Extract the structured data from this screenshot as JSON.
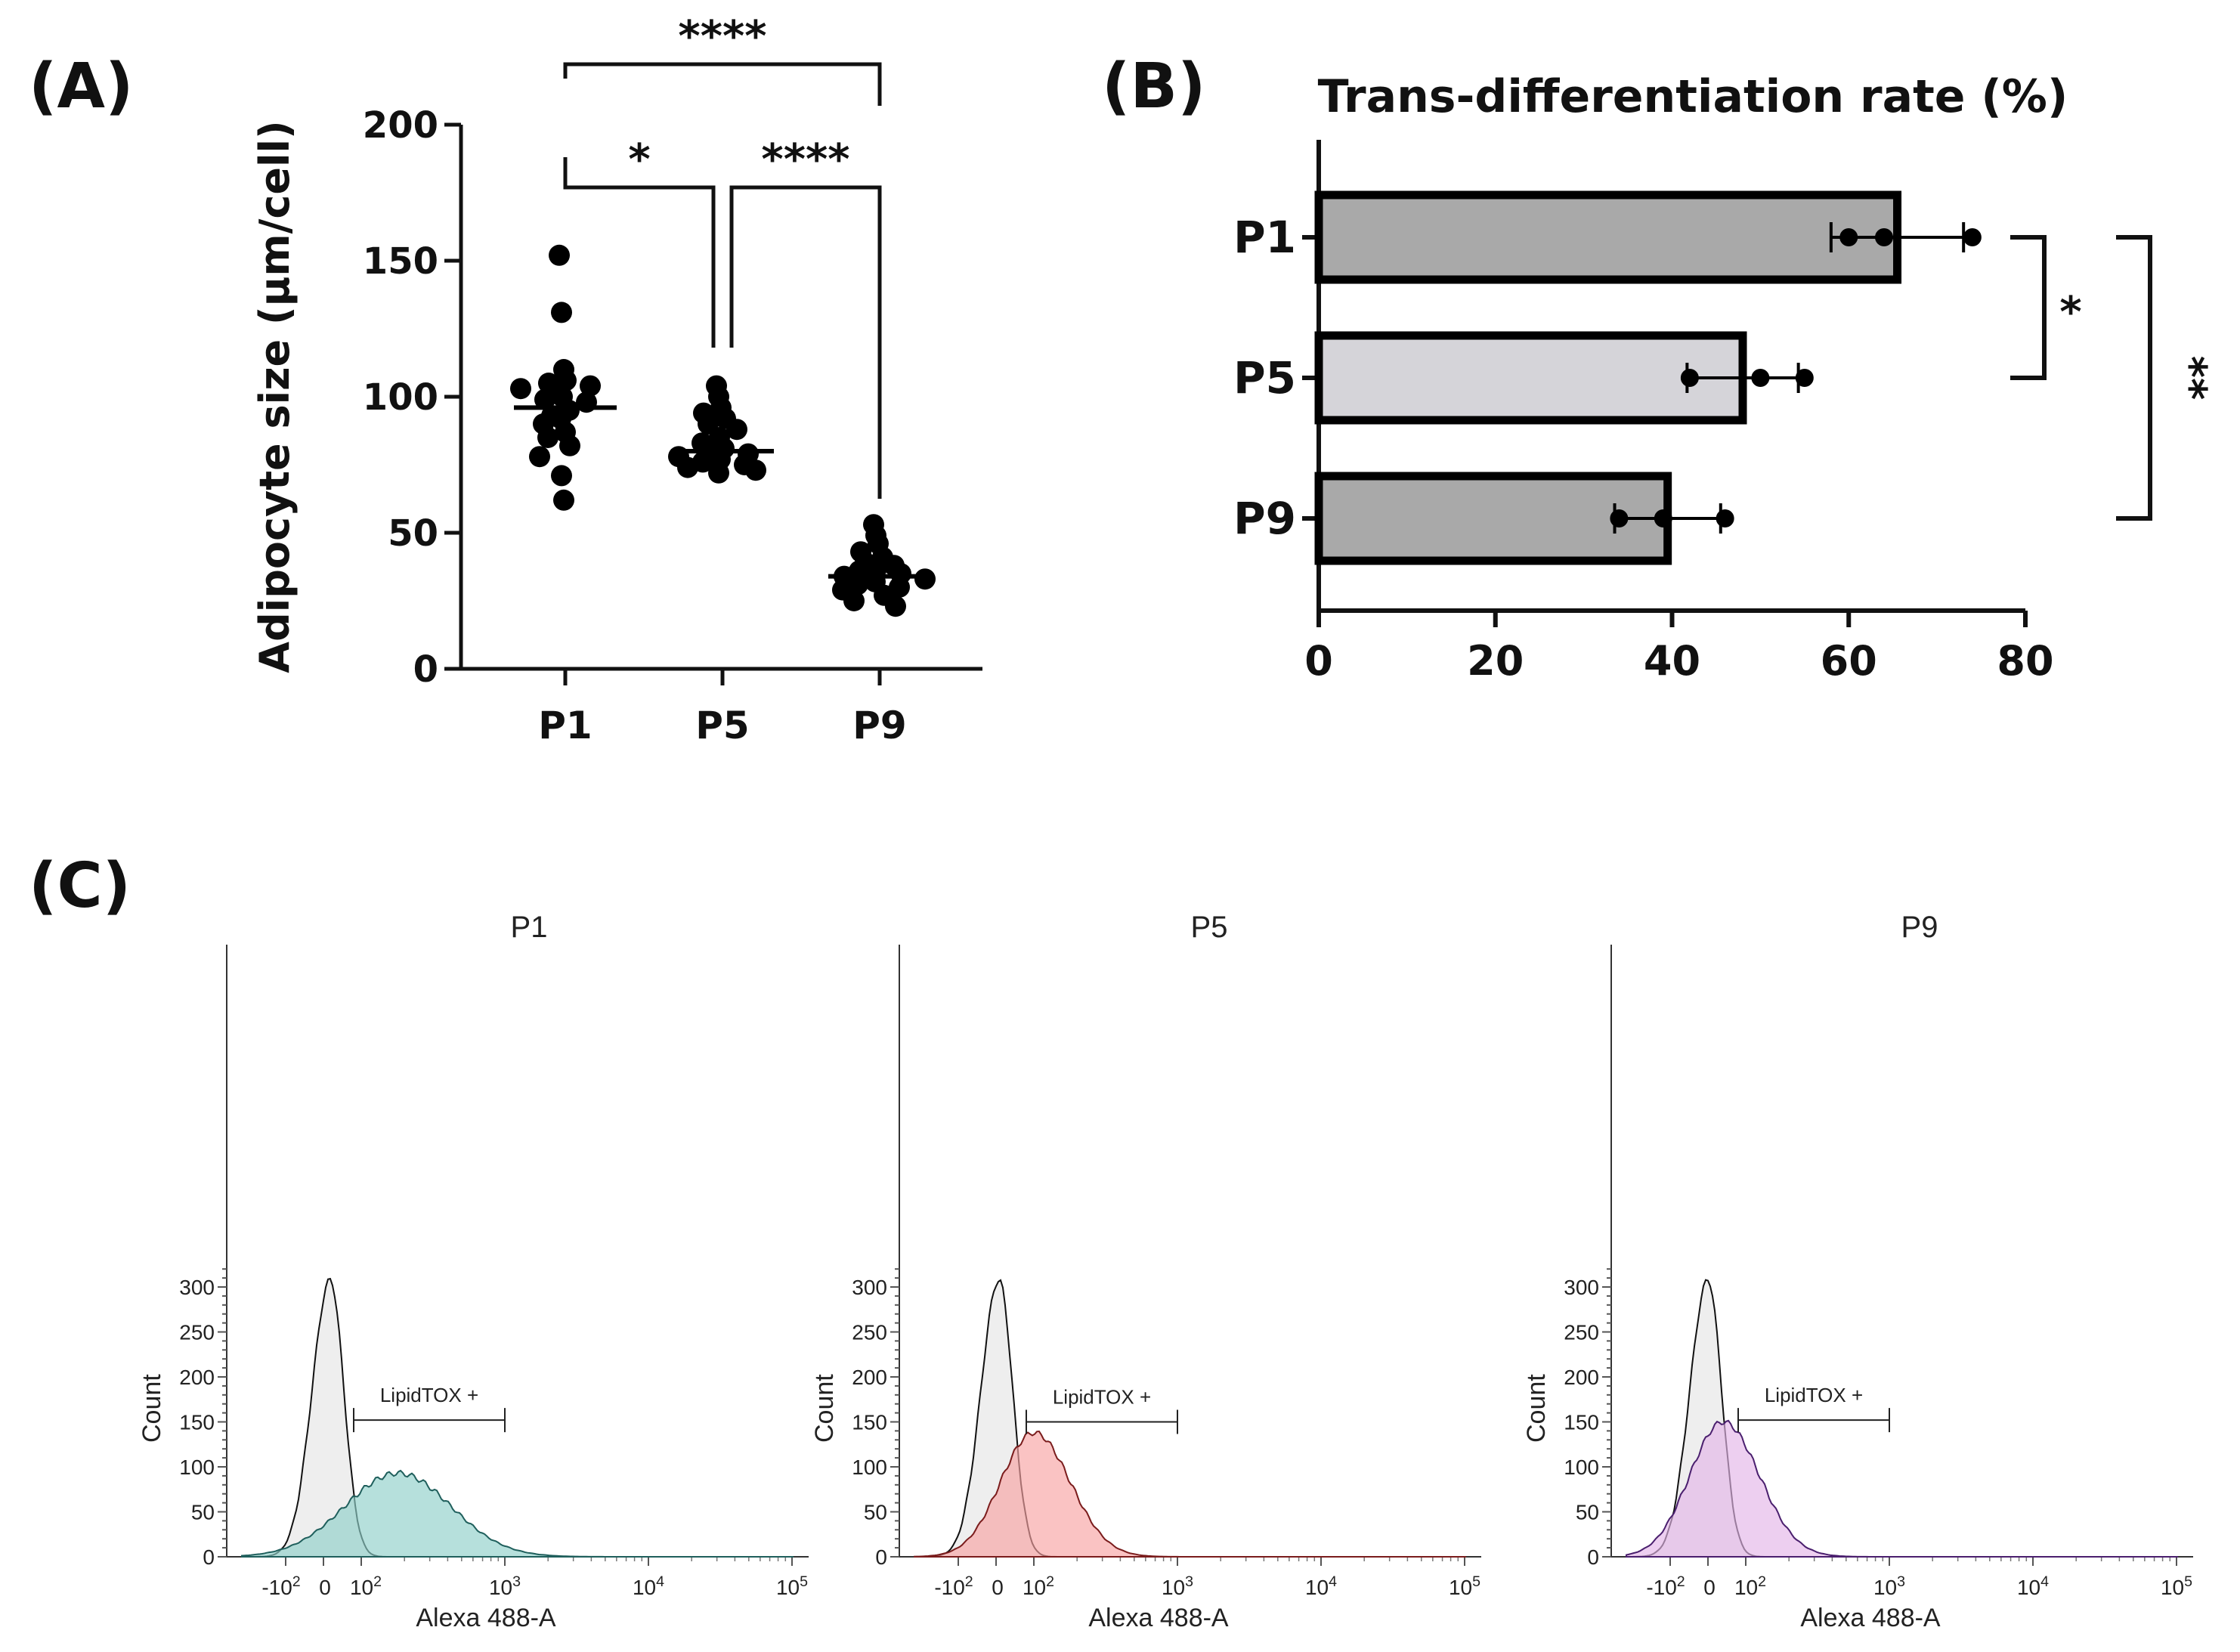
{
  "panels": {
    "A": "(A)",
    "B": "(B)",
    "C": "(C)"
  },
  "chart_data": [
    {
      "panel": "A",
      "type": "scatter",
      "title": "",
      "xlabel": "",
      "ylabel": "Adipocyte size (µm/cell)",
      "categories": [
        "P1",
        "P5",
        "P9"
      ],
      "ylim": [
        0,
        200
      ],
      "yticks": [
        0,
        50,
        100,
        150,
        200
      ],
      "series": [
        {
          "category": "P1",
          "mean": 96,
          "points": [
            152,
            131,
            110,
            106,
            105,
            104,
            103,
            100,
            99,
            98,
            95,
            93,
            92,
            90,
            87,
            85,
            82,
            78,
            71,
            62
          ]
        },
        {
          "category": "P5",
          "mean": 80,
          "points": [
            104,
            100,
            96,
            94,
            92,
            90,
            88,
            85,
            83,
            81,
            80,
            79,
            78,
            77,
            76,
            75,
            74,
            73,
            72
          ]
        },
        {
          "category": "P9",
          "mean": 34,
          "points": [
            53,
            49,
            46,
            43,
            41,
            39,
            38,
            37,
            36,
            35,
            34,
            33,
            32,
            31,
            30,
            29,
            27,
            25,
            23
          ]
        }
      ],
      "significance": [
        {
          "from": "P1",
          "to": "P9",
          "label": "****"
        },
        {
          "from": "P1",
          "to": "P5",
          "label": "*"
        },
        {
          "from": "P5",
          "to": "P9",
          "label": "****"
        }
      ],
      "grid": false
    },
    {
      "panel": "B",
      "type": "bar",
      "orientation": "horizontal",
      "title": "Trans-differentiation rate (%)",
      "xlabel": "",
      "ylabel": "",
      "categories": [
        "P1",
        "P5",
        "P9"
      ],
      "values": [
        65.5,
        48,
        39.5
      ],
      "errors": [
        7.5,
        6.3,
        6
      ],
      "points": [
        [
          60,
          64,
          74
        ],
        [
          42,
          50,
          55
        ],
        [
          34,
          39,
          46
        ]
      ],
      "bar_colors": [
        "#a9a9a9",
        "#d5d4d9",
        "#a9a9a9"
      ],
      "xlim": [
        0,
        80
      ],
      "xticks": [
        0,
        20,
        40,
        60,
        80
      ],
      "significance": [
        {
          "from": "P1",
          "to": "P5",
          "label": "*"
        },
        {
          "from": "P1",
          "to": "P9",
          "label": "**"
        }
      ],
      "grid": false
    },
    {
      "panel": "C",
      "type": "area",
      "subpanels": [
        {
          "title": "P1",
          "xlabel": "Alexa 488-A",
          "ylabel": "Count",
          "ylim": [
            0,
            320
          ],
          "yticks": [
            0,
            50,
            100,
            150,
            200,
            250,
            300
          ],
          "gate_label": "LipidTOX +",
          "gate_range": [
            80,
            1000
          ],
          "control": {
            "peak_x": 18,
            "peak_count": 308
          },
          "stained": {
            "peak_x": 180,
            "peak_count": 93,
            "color": "#8fcfc9",
            "edge": "#1f5f5c"
          }
        },
        {
          "title": "P5",
          "xlabel": "Alexa 488-A",
          "ylabel": "Count",
          "ylim": [
            0,
            320
          ],
          "yticks": [
            0,
            50,
            100,
            150,
            200,
            250,
            300
          ],
          "gate_label": "LipidTOX +",
          "gate_range": [
            80,
            1000
          ],
          "control": {
            "peak_x": 8,
            "peak_count": 308
          },
          "stained": {
            "peak_x": 100,
            "peak_count": 138,
            "color": "#f7a3a3",
            "edge": "#7a1c1c"
          },
          "x_tick_labels_override": "-10^2 0 10^2"
        },
        {
          "title": "P9",
          "xlabel": "Alexa 488-A",
          "ylabel": "Count",
          "ylim": [
            0,
            320
          ],
          "yticks": [
            0,
            50,
            100,
            150,
            200,
            250,
            300
          ],
          "gate_label": "LipidTOX +",
          "gate_range": [
            80,
            1000
          ],
          "control": {
            "peak_x": 0,
            "peak_count": 308
          },
          "stained": {
            "peak_x": 40,
            "peak_count": 150,
            "color": "#e3b5e8",
            "edge": "#4a1f6e"
          }
        }
      ],
      "x_ticks": [
        "-10^2",
        "0",
        "10^2",
        "10^3",
        "10^4",
        "10^5"
      ]
    }
  ]
}
